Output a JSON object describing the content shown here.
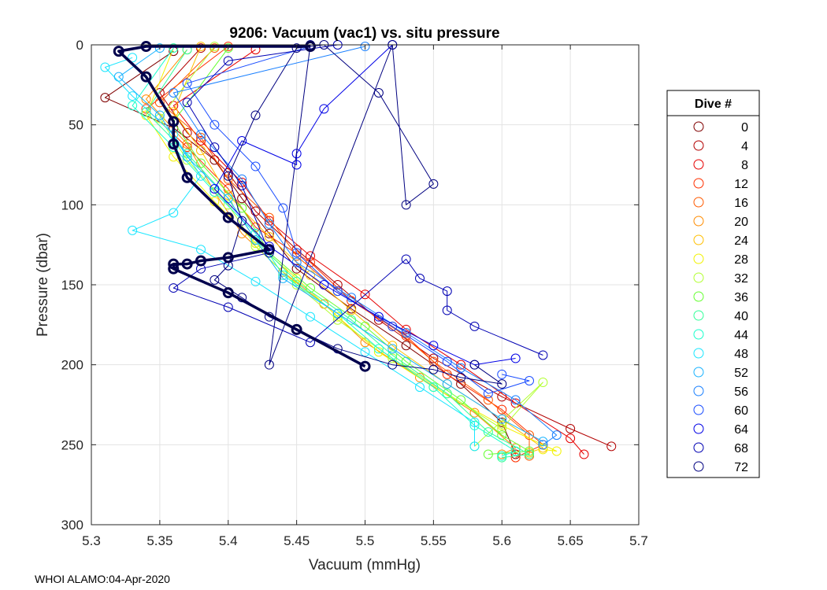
{
  "chart_data": {
    "type": "line",
    "title": "9206: Vacuum (vac1) vs. situ pressure",
    "xlabel": "Vacuum (mmHg)",
    "ylabel": "Pressure (dbar)",
    "xlim": [
      5.3,
      5.7
    ],
    "ylim": [
      0,
      300
    ],
    "y_reversed": true,
    "x_ticks": [
      5.3,
      5.35,
      5.4,
      5.45,
      5.5,
      5.55,
      5.6,
      5.65,
      5.7
    ],
    "x_tick_labels": [
      "5.3",
      "5.35",
      "5.4",
      "5.45",
      "5.5",
      "5.55",
      "5.6",
      "5.65",
      "5.7"
    ],
    "y_ticks": [
      0,
      50,
      100,
      150,
      200,
      250,
      300
    ],
    "y_tick_labels": [
      "0",
      "50",
      "100",
      "150",
      "200",
      "250",
      "300"
    ],
    "grid": true,
    "legend_position": "right",
    "legend_title": "Dive #",
    "legend": [
      {
        "label": "0",
        "color": "#800000"
      },
      {
        "label": "4",
        "color": "#b30000"
      },
      {
        "label": "8",
        "color": "#e60000"
      },
      {
        "label": "12",
        "color": "#ff3000"
      },
      {
        "label": "16",
        "color": "#ff5a00"
      },
      {
        "label": "20",
        "color": "#ff8c00"
      },
      {
        "label": "24",
        "color": "#ffbf00"
      },
      {
        "label": "28",
        "color": "#f2f200"
      },
      {
        "label": "32",
        "color": "#b3ff33"
      },
      {
        "label": "36",
        "color": "#66ff33"
      },
      {
        "label": "40",
        "color": "#33ff99"
      },
      {
        "label": "44",
        "color": "#1affcc"
      },
      {
        "label": "48",
        "color": "#1ae6ff"
      },
      {
        "label": "52",
        "color": "#1ab3ff"
      },
      {
        "label": "56",
        "color": "#1a80ff"
      },
      {
        "label": "60",
        "color": "#1a4dff"
      },
      {
        "label": "64",
        "color": "#0000e6"
      },
      {
        "label": "68",
        "color": "#0000b3"
      },
      {
        "label": "72",
        "color": "#000080"
      }
    ],
    "series": [
      {
        "name": "0",
        "color": "#800000",
        "points": [
          [
            5.36,
            4
          ],
          [
            5.31,
            33
          ],
          [
            5.36,
            52
          ],
          [
            5.39,
            72
          ],
          [
            5.41,
            96
          ],
          [
            5.43,
            118
          ],
          [
            5.45,
            140
          ],
          [
            5.49,
            165
          ],
          [
            5.53,
            188
          ],
          [
            5.57,
            212
          ],
          [
            5.6,
            236
          ],
          [
            5.61,
            256
          ]
        ]
      },
      {
        "name": "4",
        "color": "#b30000",
        "points": [
          [
            5.38,
            2
          ],
          [
            5.35,
            30
          ],
          [
            5.37,
            55
          ],
          [
            5.4,
            80
          ],
          [
            5.42,
            104
          ],
          [
            5.45,
            128
          ],
          [
            5.48,
            150
          ],
          [
            5.51,
            172
          ],
          [
            5.55,
            196
          ],
          [
            5.6,
            220
          ],
          [
            5.65,
            240
          ],
          [
            5.68,
            251
          ]
        ]
      },
      {
        "name": "8",
        "color": "#e60000",
        "points": [
          [
            5.42,
            3
          ],
          [
            5.36,
            38
          ],
          [
            5.38,
            60
          ],
          [
            5.41,
            86
          ],
          [
            5.43,
            110
          ],
          [
            5.46,
            132
          ],
          [
            5.5,
            156
          ],
          [
            5.53,
            178
          ],
          [
            5.57,
            200
          ],
          [
            5.61,
            224
          ],
          [
            5.65,
            246
          ],
          [
            5.66,
            256
          ]
        ]
      },
      {
        "name": "12",
        "color": "#ff3000",
        "points": [
          [
            5.4,
            1
          ],
          [
            5.34,
            40
          ],
          [
            5.37,
            64
          ],
          [
            5.4,
            90
          ],
          [
            5.42,
            114
          ],
          [
            5.46,
            136
          ],
          [
            5.49,
            160
          ],
          [
            5.53,
            182
          ],
          [
            5.56,
            206
          ],
          [
            5.6,
            228
          ],
          [
            5.63,
            250
          ],
          [
            5.61,
            258
          ]
        ]
      },
      {
        "name": "16",
        "color": "#ff5a00",
        "points": [
          [
            5.39,
            2
          ],
          [
            5.35,
            36
          ],
          [
            5.38,
            58
          ],
          [
            5.4,
            84
          ],
          [
            5.43,
            108
          ],
          [
            5.45,
            132
          ],
          [
            5.48,
            154
          ],
          [
            5.52,
            176
          ],
          [
            5.55,
            198
          ],
          [
            5.59,
            222
          ],
          [
            5.62,
            244
          ],
          [
            5.62,
            257
          ]
        ]
      },
      {
        "name": "20",
        "color": "#ff8c00",
        "points": [
          [
            5.37,
            3
          ],
          [
            5.34,
            34
          ],
          [
            5.37,
            62
          ],
          [
            5.39,
            92
          ],
          [
            5.41,
            118
          ],
          [
            5.44,
            142
          ],
          [
            5.47,
            162
          ],
          [
            5.5,
            186
          ],
          [
            5.54,
            208
          ],
          [
            5.58,
            230
          ],
          [
            5.61,
            252
          ],
          [
            5.6,
            256
          ]
        ]
      },
      {
        "name": "24",
        "color": "#ffbf00",
        "points": [
          [
            5.38,
            1
          ],
          [
            5.36,
            42
          ],
          [
            5.38,
            66
          ],
          [
            5.4,
            94
          ],
          [
            5.43,
            120
          ],
          [
            5.46,
            144
          ],
          [
            5.49,
            166
          ],
          [
            5.52,
            188
          ],
          [
            5.56,
            212
          ],
          [
            5.6,
            234
          ],
          [
            5.63,
            252
          ],
          [
            5.62,
            255
          ]
        ]
      },
      {
        "name": "28",
        "color": "#f2f200",
        "points": [
          [
            5.36,
            2
          ],
          [
            5.34,
            44
          ],
          [
            5.36,
            70
          ],
          [
            5.39,
            98
          ],
          [
            5.42,
            124
          ],
          [
            5.45,
            146
          ],
          [
            5.48,
            170
          ],
          [
            5.51,
            192
          ],
          [
            5.55,
            214
          ],
          [
            5.6,
            238
          ],
          [
            5.64,
            254
          ],
          [
            5.63,
            253
          ]
        ]
      },
      {
        "name": "32",
        "color": "#b3ff33",
        "points": [
          [
            5.39,
            1
          ],
          [
            5.35,
            46
          ],
          [
            5.37,
            72
          ],
          [
            5.4,
            100
          ],
          [
            5.42,
            126
          ],
          [
            5.45,
            150
          ],
          [
            5.48,
            172
          ],
          [
            5.52,
            196
          ],
          [
            5.56,
            218
          ],
          [
            5.6,
            240
          ],
          [
            5.63,
            211
          ],
          [
            5.58,
            251
          ]
        ]
      },
      {
        "name": "36",
        "color": "#66ff33",
        "points": [
          [
            5.4,
            2
          ],
          [
            5.36,
            48
          ],
          [
            5.38,
            74
          ],
          [
            5.41,
            102
          ],
          [
            5.43,
            130
          ],
          [
            5.46,
            152
          ],
          [
            5.5,
            176
          ],
          [
            5.53,
            198
          ],
          [
            5.57,
            222
          ],
          [
            5.6,
            244
          ],
          [
            5.62,
            254
          ],
          [
            5.59,
            256
          ]
        ]
      },
      {
        "name": "40",
        "color": "#33ff99",
        "points": [
          [
            5.37,
            3
          ],
          [
            5.34,
            42
          ],
          [
            5.37,
            68
          ],
          [
            5.4,
            96
          ],
          [
            5.42,
            122
          ],
          [
            5.45,
            148
          ],
          [
            5.49,
            172
          ],
          [
            5.52,
            194
          ],
          [
            5.56,
            218
          ],
          [
            5.59,
            242
          ],
          [
            5.62,
            256
          ],
          [
            5.6,
            258
          ]
        ]
      },
      {
        "name": "44",
        "color": "#1affcc",
        "points": [
          [
            5.36,
            2
          ],
          [
            5.33,
            38
          ],
          [
            5.36,
            64
          ],
          [
            5.39,
            92
          ],
          [
            5.42,
            118
          ],
          [
            5.44,
            144
          ],
          [
            5.48,
            168
          ],
          [
            5.51,
            190
          ],
          [
            5.55,
            214
          ],
          [
            5.58,
            238
          ],
          [
            5.61,
            254
          ],
          [
            5.6,
            257
          ]
        ]
      },
      {
        "name": "48",
        "color": "#1ae6ff",
        "points": [
          [
            5.33,
            8
          ],
          [
            5.31,
            14
          ],
          [
            5.33,
            32
          ],
          [
            5.36,
            56
          ],
          [
            5.38,
            82
          ],
          [
            5.36,
            105
          ],
          [
            5.33,
            116
          ],
          [
            5.38,
            128
          ],
          [
            5.42,
            148
          ],
          [
            5.46,
            170
          ],
          [
            5.5,
            192
          ],
          [
            5.54,
            214
          ],
          [
            5.58,
            236
          ],
          [
            5.58,
            251
          ]
        ]
      },
      {
        "name": "52",
        "color": "#1ab3ff",
        "points": [
          [
            5.35,
            2
          ],
          [
            5.32,
            20
          ],
          [
            5.35,
            44
          ],
          [
            5.37,
            70
          ],
          [
            5.4,
            96
          ],
          [
            5.42,
            122
          ],
          [
            5.44,
            146
          ],
          [
            5.48,
            168
          ],
          [
            5.52,
            190
          ],
          [
            5.56,
            212
          ],
          [
            5.6,
            234
          ],
          [
            5.63,
            248
          ]
        ]
      },
      {
        "name": "56",
        "color": "#1a80ff",
        "points": [
          [
            5.5,
            1
          ],
          [
            5.36,
            30
          ],
          [
            5.38,
            56
          ],
          [
            5.41,
            84
          ],
          [
            5.43,
            112
          ],
          [
            5.45,
            136
          ],
          [
            5.49,
            158
          ],
          [
            5.53,
            180
          ],
          [
            5.57,
            202
          ],
          [
            5.61,
            222
          ],
          [
            5.64,
            244
          ],
          [
            5.63,
            250
          ]
        ]
      },
      {
        "name": "60",
        "color": "#1a4dff",
        "points": [
          [
            5.46,
            1
          ],
          [
            5.37,
            24
          ],
          [
            5.39,
            50
          ],
          [
            5.42,
            76
          ],
          [
            5.44,
            102
          ],
          [
            5.45,
            130
          ],
          [
            5.48,
            154
          ],
          [
            5.52,
            176
          ],
          [
            5.56,
            198
          ],
          [
            5.59,
            218
          ],
          [
            5.62,
            210
          ],
          [
            5.6,
            206
          ]
        ]
      },
      {
        "name": "64",
        "color": "#0000e6",
        "points": [
          [
            5.52,
            0
          ],
          [
            5.47,
            40
          ],
          [
            5.45,
            68
          ],
          [
            5.45,
            75
          ],
          [
            5.41,
            60
          ],
          [
            5.39,
            90
          ],
          [
            5.43,
            126
          ],
          [
            5.47,
            150
          ],
          [
            5.51,
            170
          ],
          [
            5.55,
            188
          ],
          [
            5.58,
            200
          ],
          [
            5.61,
            196
          ]
        ]
      },
      {
        "name": "68",
        "color": "#0000b3",
        "points": [
          [
            5.48,
            0
          ],
          [
            5.4,
            10
          ],
          [
            5.37,
            36
          ],
          [
            5.39,
            64
          ],
          [
            5.41,
            88
          ],
          [
            5.43,
            130
          ],
          [
            5.38,
            140
          ],
          [
            5.36,
            152
          ],
          [
            5.4,
            164
          ],
          [
            5.46,
            186
          ],
          [
            5.53,
            134
          ],
          [
            5.54,
            146
          ],
          [
            5.56,
            154
          ],
          [
            5.56,
            166
          ],
          [
            5.58,
            176
          ],
          [
            5.63,
            194
          ]
        ]
      },
      {
        "name": "72",
        "color": "#000080",
        "points": [
          [
            5.46,
            0
          ],
          [
            5.43,
            200
          ],
          [
            5.52,
            0
          ],
          [
            5.53,
            100
          ],
          [
            5.55,
            87
          ],
          [
            5.51,
            30
          ],
          [
            5.47,
            0
          ],
          [
            5.45,
            2
          ],
          [
            5.42,
            44
          ],
          [
            5.4,
            82
          ],
          [
            5.41,
            110
          ],
          [
            5.4,
            138
          ],
          [
            5.39,
            147
          ],
          [
            5.41,
            158
          ],
          [
            5.43,
            170
          ],
          [
            5.48,
            190
          ],
          [
            5.52,
            200
          ],
          [
            5.55,
            203
          ],
          [
            5.57,
            208
          ],
          [
            5.6,
            212
          ],
          [
            5.58,
            200
          ]
        ]
      },
      {
        "name": "72-bold",
        "color": "#00004d",
        "bold": true,
        "points": [
          [
            5.46,
            1
          ],
          [
            5.34,
            1
          ],
          [
            5.32,
            4
          ],
          [
            5.34,
            20
          ],
          [
            5.36,
            48
          ],
          [
            5.36,
            62
          ],
          [
            5.37,
            83
          ],
          [
            5.4,
            108
          ],
          [
            5.43,
            128
          ],
          [
            5.4,
            133
          ],
          [
            5.38,
            135
          ],
          [
            5.37,
            137
          ],
          [
            5.36,
            137
          ],
          [
            5.36,
            140
          ],
          [
            5.4,
            155
          ],
          [
            5.45,
            178
          ],
          [
            5.5,
            201
          ]
        ]
      }
    ],
    "footer": "WHOI ALAMO:04-Apr-2020"
  }
}
